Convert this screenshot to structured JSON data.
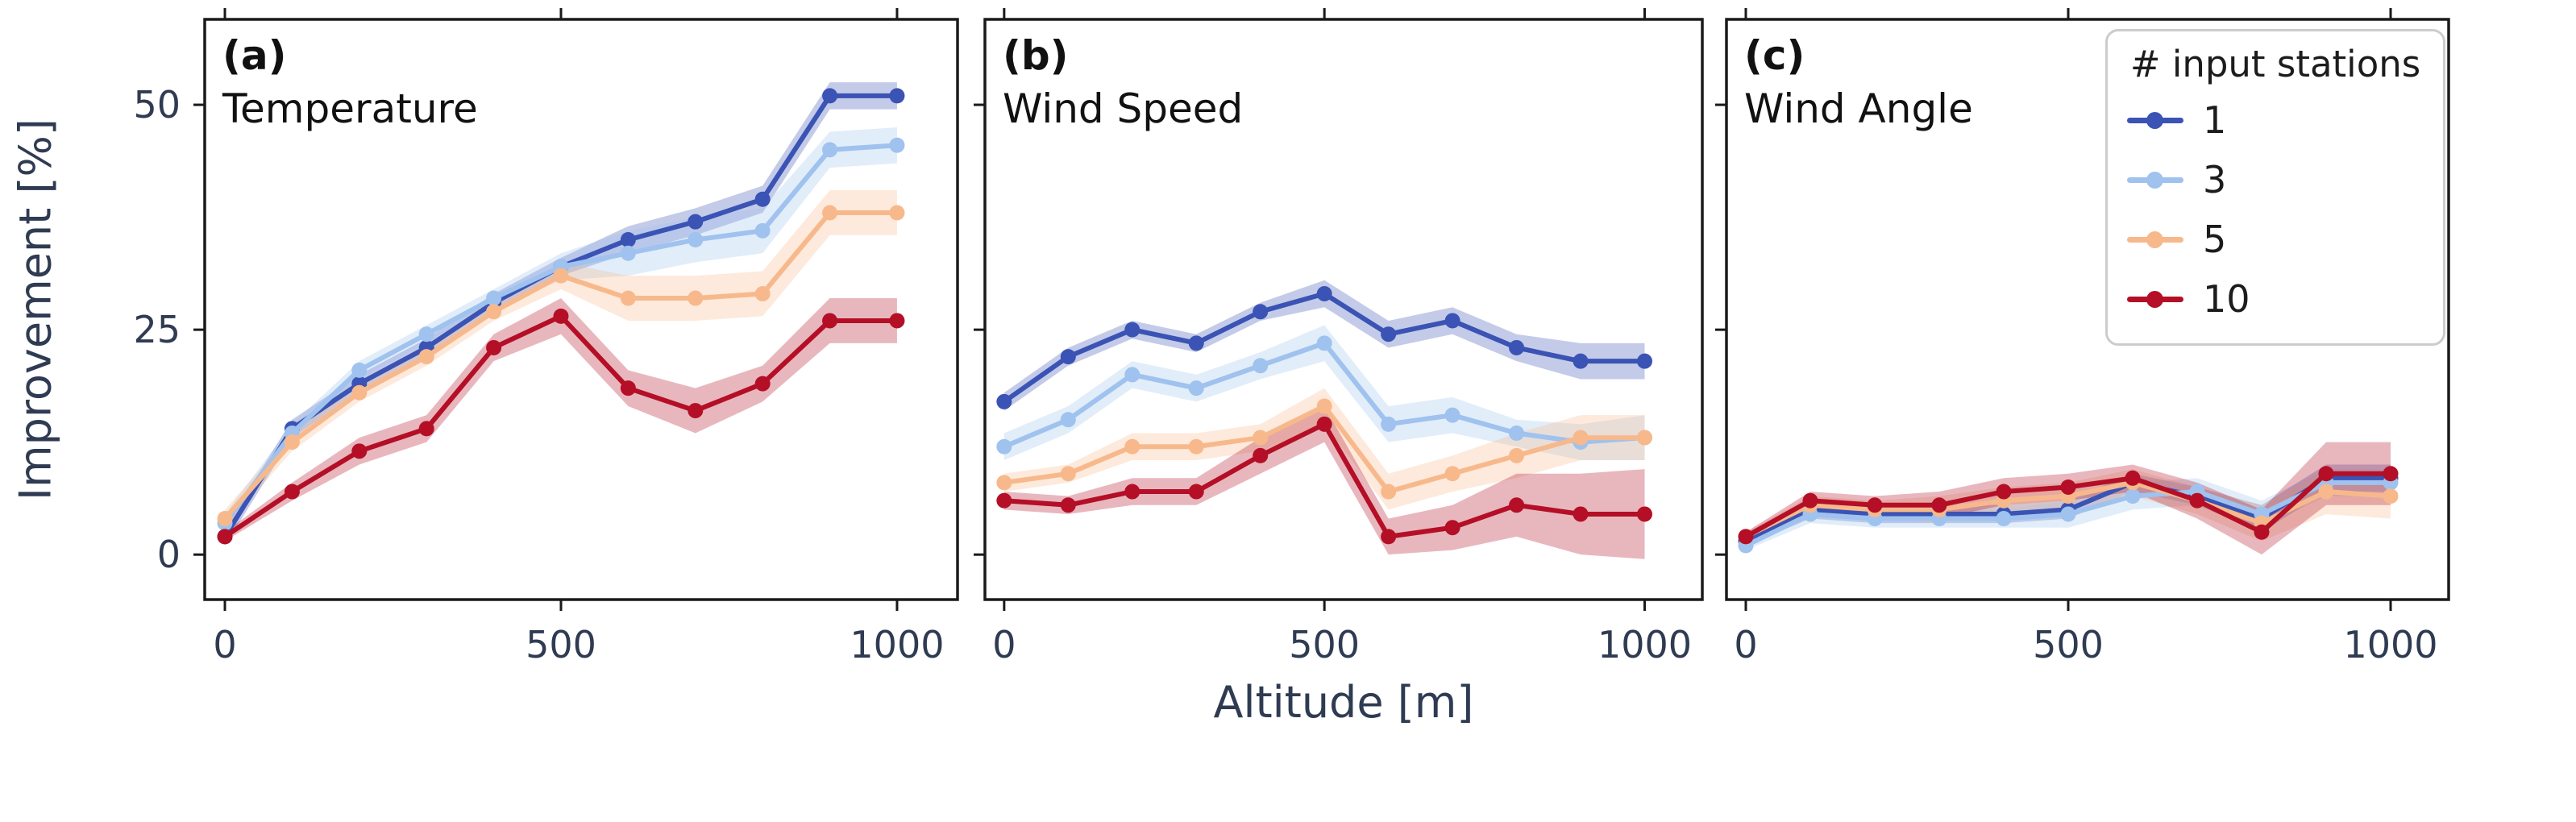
{
  "figure": {
    "xlabel": "Altitude [m]",
    "ylabel": "Improvement [%]",
    "background": "#ffffff",
    "text_color": "#2f3b52",
    "spine_color": "#1a1a1a"
  },
  "legend": {
    "title": "# input stations",
    "entries": [
      {
        "label": "1",
        "color": "#3a53b4"
      },
      {
        "label": "3",
        "color": "#9fc2ee"
      },
      {
        "label": "5",
        "color": "#f7b98c"
      },
      {
        "label": "10",
        "color": "#b40f26"
      }
    ]
  },
  "chart_data": [
    {
      "type": "line",
      "panel": "(a)",
      "title": "Temperature",
      "xlabel": "Altitude [m]",
      "ylabel": "Improvement [%]",
      "x": [
        0,
        100,
        200,
        300,
        400,
        500,
        600,
        700,
        800,
        900,
        1000
      ],
      "xlim": [
        -30,
        1090
      ],
      "ylim": [
        -5,
        59.5
      ],
      "xticks": [
        0,
        500,
        1000
      ],
      "yticks": [
        0,
        25,
        50
      ],
      "grid": false,
      "series": [
        {
          "name": "1",
          "color": "#3a53b4",
          "values": [
            2,
            14,
            19,
            23,
            28,
            32,
            35,
            37,
            39.5,
            51,
            51
          ],
          "band": [
            1,
            1,
            1,
            1,
            1,
            1,
            1.5,
            1.5,
            1.5,
            1.5,
            1.5
          ]
        },
        {
          "name": "3",
          "color": "#9fc2ee",
          "values": [
            3.5,
            13.5,
            20.5,
            24.5,
            28.5,
            32,
            33.5,
            35,
            36,
            45,
            45.5
          ],
          "band": [
            1,
            1,
            1,
            1,
            1,
            1.5,
            2.5,
            2.5,
            2.5,
            2,
            2
          ]
        },
        {
          "name": "5",
          "color": "#f7b98c",
          "values": [
            4,
            12.5,
            18,
            22,
            27,
            31,
            28.5,
            28.5,
            29,
            38,
            38
          ],
          "band": [
            1,
            1,
            1,
            1,
            1,
            1.5,
            2.5,
            2.5,
            2.5,
            2.5,
            2.5
          ]
        },
        {
          "name": "10",
          "color": "#b40f26",
          "values": [
            2,
            7,
            11.5,
            14,
            23,
            26.5,
            18.5,
            16,
            19,
            26,
            26
          ],
          "band": [
            0.5,
            1,
            1.5,
            1.5,
            1.5,
            2,
            2,
            2.5,
            2,
            2.5,
            2.5
          ]
        }
      ]
    },
    {
      "type": "line",
      "panel": "(b)",
      "title": "Wind Speed",
      "xlabel": "Altitude [m]",
      "ylabel": "Improvement [%]",
      "x": [
        0,
        100,
        200,
        300,
        400,
        500,
        600,
        700,
        800,
        900,
        1000
      ],
      "xlim": [
        -30,
        1090
      ],
      "ylim": [
        -5,
        59.5
      ],
      "xticks": [
        0,
        500,
        1000
      ],
      "yticks": [
        0,
        25,
        50
      ],
      "grid": false,
      "series": [
        {
          "name": "1",
          "color": "#3a53b4",
          "values": [
            17,
            22,
            25,
            23.5,
            27,
            29,
            24.5,
            26,
            23,
            21.5,
            21.5
          ],
          "band": [
            1,
            1,
            1,
            1,
            1,
            1.5,
            1.5,
            1.5,
            1.5,
            2,
            2
          ]
        },
        {
          "name": "3",
          "color": "#9fc2ee",
          "values": [
            12,
            15,
            20,
            18.5,
            21,
            23.5,
            14.5,
            15.5,
            13.5,
            12.5,
            13
          ],
          "band": [
            1.5,
            1.5,
            1.5,
            1.5,
            1.5,
            2,
            2,
            2,
            1.5,
            2,
            2.5
          ]
        },
        {
          "name": "5",
          "color": "#f7b98c",
          "values": [
            8,
            9,
            12,
            12,
            13,
            16.5,
            7,
            9,
            11,
            13,
            13
          ],
          "band": [
            1,
            1,
            1.5,
            1.5,
            1.5,
            2,
            2,
            2,
            2.5,
            2.5,
            2.5
          ]
        },
        {
          "name": "10",
          "color": "#b40f26",
          "values": [
            6,
            5.5,
            7,
            7,
            11,
            14.5,
            2,
            3,
            5.5,
            4.5,
            4.5
          ],
          "band": [
            1,
            1,
            1.5,
            1.5,
            2,
            2,
            2,
            2.5,
            3.5,
            4.5,
            5
          ]
        }
      ]
    },
    {
      "type": "line",
      "panel": "(c)",
      "title": "Wind Angle",
      "xlabel": "Altitude [m]",
      "ylabel": "Improvement [%]",
      "x": [
        0,
        100,
        200,
        300,
        400,
        500,
        600,
        700,
        800,
        900,
        1000
      ],
      "xlim": [
        -30,
        1090
      ],
      "ylim": [
        -5,
        59.5
      ],
      "xticks": [
        0,
        500,
        1000
      ],
      "yticks": [
        0,
        25,
        50
      ],
      "grid": false,
      "series": [
        {
          "name": "1",
          "color": "#3a53b4",
          "values": [
            1.5,
            5,
            4.5,
            4.5,
            4.5,
            5,
            8,
            6.5,
            4,
            8.5,
            8.5
          ],
          "band": [
            0.5,
            1,
            1,
            1,
            1,
            1,
            1,
            1,
            1.5,
            1.5,
            1.5
          ]
        },
        {
          "name": "3",
          "color": "#9fc2ee",
          "values": [
            1,
            4.5,
            4,
            4,
            4,
            4.5,
            6.5,
            7,
            4.5,
            8,
            8
          ],
          "band": [
            0.5,
            1,
            1,
            1,
            1,
            1.5,
            1.5,
            1.5,
            1.5,
            1.5,
            1.5
          ]
        },
        {
          "name": "5",
          "color": "#f7b98c",
          "values": [
            2,
            5.5,
            5,
            5,
            6,
            6.5,
            8,
            6,
            3.5,
            7,
            6.5
          ],
          "band": [
            0.5,
            1,
            1,
            1.5,
            1.5,
            1.5,
            1.5,
            1.5,
            2,
            2.5,
            2.5
          ]
        },
        {
          "name": "10",
          "color": "#b40f26",
          "values": [
            2,
            6,
            5.5,
            5.5,
            7,
            7.5,
            8.5,
            6,
            2.5,
            9,
            9
          ],
          "band": [
            0.5,
            1,
            1,
            1.5,
            1.5,
            1.5,
            1.5,
            2,
            2.5,
            3.5,
            3.5
          ]
        }
      ]
    }
  ]
}
